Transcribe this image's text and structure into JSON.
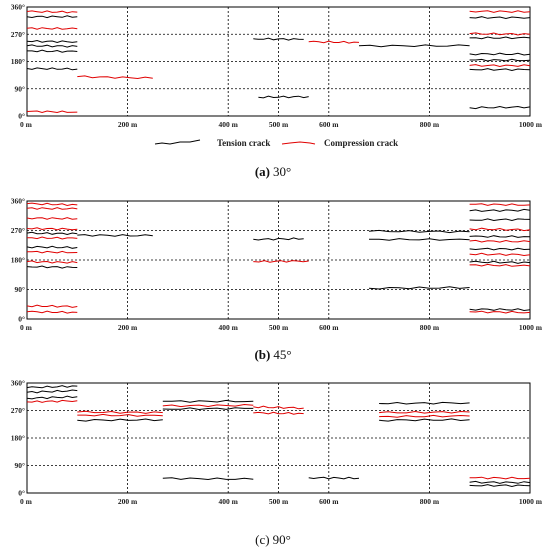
{
  "figure": {
    "crack_types": [
      {
        "name": "Tension crack",
        "color": "#000000"
      },
      {
        "name": "Compression crack",
        "color": "#e00000"
      }
    ]
  },
  "chart_data": [
    {
      "type": "line",
      "caption_letter": "(a)",
      "caption_angle": "30°",
      "x_ticks": [
        "0 m",
        "200 m",
        "400 m",
        "500 m",
        "600 m",
        "800 m",
        "1000 m"
      ],
      "x_tick_values": [
        0,
        200,
        400,
        500,
        600,
        800,
        1000
      ],
      "y_ticks": [
        "0°",
        "90°",
        "180°",
        "270°",
        "360°"
      ],
      "y_tick_values": [
        0,
        90,
        180,
        270,
        360
      ],
      "xlim": [
        0,
        1000
      ],
      "ylim": [
        0,
        360
      ],
      "grid": true,
      "legend": "below",
      "series": [
        {
          "kind": "compression",
          "x": [
            0,
            100
          ],
          "y": [
            345,
            343
          ]
        },
        {
          "kind": "compression",
          "x": [
            0,
            100
          ],
          "y": [
            290,
            288
          ]
        },
        {
          "kind": "tension",
          "x": [
            0,
            100
          ],
          "y": [
            328,
            328
          ]
        },
        {
          "kind": "tension",
          "x": [
            0,
            100
          ],
          "y": [
            247,
            245
          ]
        },
        {
          "kind": "tension",
          "x": [
            0,
            100
          ],
          "y": [
            232,
            230
          ]
        },
        {
          "kind": "tension",
          "x": [
            0,
            100
          ],
          "y": [
            215,
            213
          ]
        },
        {
          "kind": "tension",
          "x": [
            0,
            100
          ],
          "y": [
            157,
            155
          ]
        },
        {
          "kind": "compression",
          "x": [
            0,
            100
          ],
          "y": [
            15,
            13
          ]
        },
        {
          "kind": "compression",
          "x": [
            100,
            250
          ],
          "y": [
            130,
            125
          ]
        },
        {
          "kind": "tension",
          "x": [
            450,
            550
          ],
          "y": [
            255,
            253
          ]
        },
        {
          "kind": "tension",
          "x": [
            460,
            560
          ],
          "y": [
            62,
            64
          ]
        },
        {
          "kind": "compression",
          "x": [
            560,
            660
          ],
          "y": [
            245,
            243
          ]
        },
        {
          "kind": "tension",
          "x": [
            660,
            880
          ],
          "y": [
            232,
            232
          ]
        },
        {
          "kind": "compression",
          "x": [
            880,
            1000
          ],
          "y": [
            346,
            344
          ]
        },
        {
          "kind": "tension",
          "x": [
            880,
            1000
          ],
          "y": [
            325,
            325
          ]
        },
        {
          "kind": "compression",
          "x": [
            880,
            1000
          ],
          "y": [
            272,
            270
          ]
        },
        {
          "kind": "tension",
          "x": [
            880,
            1000
          ],
          "y": [
            258,
            258
          ]
        },
        {
          "kind": "tension",
          "x": [
            880,
            1000
          ],
          "y": [
            205,
            204
          ]
        },
        {
          "kind": "tension",
          "x": [
            880,
            1000
          ],
          "y": [
            185,
            184
          ]
        },
        {
          "kind": "compression",
          "x": [
            880,
            1000
          ],
          "y": [
            167,
            166
          ]
        },
        {
          "kind": "tension",
          "x": [
            880,
            1000
          ],
          "y": [
            154,
            153
          ]
        },
        {
          "kind": "tension",
          "x": [
            880,
            1000
          ],
          "y": [
            27,
            30
          ]
        }
      ]
    },
    {
      "type": "line",
      "caption_letter": "(b)",
      "caption_angle": "45°",
      "x_ticks": [
        "0 m",
        "200 m",
        "400 m",
        "500 m",
        "600 m",
        "800 m",
        "1000 m"
      ],
      "x_tick_values": [
        0,
        200,
        400,
        500,
        600,
        800,
        1000
      ],
      "y_ticks": [
        "0°",
        "90°",
        "180°",
        "270°",
        "360°"
      ],
      "y_tick_values": [
        0,
        90,
        180,
        270,
        360
      ],
      "xlim": [
        0,
        1000
      ],
      "ylim": [
        0,
        360
      ],
      "grid": true,
      "legend": "none",
      "series": [
        {
          "kind": "compression",
          "x": [
            0,
            100
          ],
          "y": [
            352,
            348
          ]
        },
        {
          "kind": "compression",
          "x": [
            0,
            100
          ],
          "y": [
            338,
            336
          ]
        },
        {
          "kind": "compression",
          "x": [
            0,
            100
          ],
          "y": [
            308,
            306
          ]
        },
        {
          "kind": "compression",
          "x": [
            0,
            100
          ],
          "y": [
            276,
            274
          ]
        },
        {
          "kind": "tension",
          "x": [
            0,
            100
          ],
          "y": [
            262,
            260
          ]
        },
        {
          "kind": "compression",
          "x": [
            0,
            100
          ],
          "y": [
            248,
            246
          ]
        },
        {
          "kind": "tension",
          "x": [
            0,
            100
          ],
          "y": [
            220,
            218
          ]
        },
        {
          "kind": "compression",
          "x": [
            0,
            100
          ],
          "y": [
            205,
            203
          ]
        },
        {
          "kind": "compression",
          "x": [
            0,
            100
          ],
          "y": [
            175,
            172
          ]
        },
        {
          "kind": "tension",
          "x": [
            0,
            100
          ],
          "y": [
            160,
            157
          ]
        },
        {
          "kind": "compression",
          "x": [
            0,
            100
          ],
          "y": [
            40,
            38
          ]
        },
        {
          "kind": "compression",
          "x": [
            0,
            100
          ],
          "y": [
            22,
            20
          ]
        },
        {
          "kind": "tension",
          "x": [
            100,
            250
          ],
          "y": [
            256,
            254
          ]
        },
        {
          "kind": "tension",
          "x": [
            450,
            550
          ],
          "y": [
            243,
            245
          ]
        },
        {
          "kind": "compression",
          "x": [
            450,
            560
          ],
          "y": [
            175,
            177
          ]
        },
        {
          "kind": "tension",
          "x": [
            680,
            880
          ],
          "y": [
            268,
            266
          ]
        },
        {
          "kind": "tension",
          "x": [
            680,
            880
          ],
          "y": [
            243,
            242
          ]
        },
        {
          "kind": "tension",
          "x": [
            680,
            880
          ],
          "y": [
            94,
            96
          ]
        },
        {
          "kind": "compression",
          "x": [
            880,
            1000
          ],
          "y": [
            350,
            348
          ]
        },
        {
          "kind": "tension",
          "x": [
            880,
            1000
          ],
          "y": [
            330,
            332
          ]
        },
        {
          "kind": "tension",
          "x": [
            880,
            1000
          ],
          "y": [
            302,
            304
          ]
        },
        {
          "kind": "compression",
          "x": [
            880,
            1000
          ],
          "y": [
            275,
            272
          ]
        },
        {
          "kind": "tension",
          "x": [
            880,
            1000
          ],
          "y": [
            252,
            251
          ]
        },
        {
          "kind": "compression",
          "x": [
            880,
            1000
          ],
          "y": [
            238,
            236
          ]
        },
        {
          "kind": "tension",
          "x": [
            880,
            1000
          ],
          "y": [
            214,
            213
          ]
        },
        {
          "kind": "compression",
          "x": [
            880,
            1000
          ],
          "y": [
            198,
            196
          ]
        },
        {
          "kind": "tension",
          "x": [
            880,
            1000
          ],
          "y": [
            174,
            172
          ]
        },
        {
          "kind": "compression",
          "x": [
            880,
            1000
          ],
          "y": [
            165,
            162
          ]
        },
        {
          "kind": "tension",
          "x": [
            880,
            1000
          ],
          "y": [
            30,
            28
          ]
        },
        {
          "kind": "compression",
          "x": [
            880,
            1000
          ],
          "y": [
            22,
            20
          ]
        }
      ]
    },
    {
      "type": "line",
      "caption_letter": "(c)",
      "caption_angle": "90°",
      "x_ticks": [
        "0 m",
        "200 m",
        "400 m",
        "500 m",
        "600 m",
        "800 m",
        "1000 m"
      ],
      "x_tick_values": [
        0,
        200,
        400,
        500,
        600,
        800,
        1000
      ],
      "y_ticks": [
        "0°",
        "90°",
        "180°",
        "270°",
        "360°"
      ],
      "y_tick_values": [
        0,
        90,
        180,
        270,
        360
      ],
      "xlim": [
        0,
        1000
      ],
      "ylim": [
        0,
        360
      ],
      "grid": true,
      "legend": "none",
      "series": [
        {
          "kind": "tension",
          "x": [
            0,
            100
          ],
          "y": [
            345,
            350
          ]
        },
        {
          "kind": "tension",
          "x": [
            0,
            100
          ],
          "y": [
            330,
            335
          ]
        },
        {
          "kind": "tension",
          "x": [
            0,
            100
          ],
          "y": [
            310,
            315
          ]
        },
        {
          "kind": "compression",
          "x": [
            0,
            100
          ],
          "y": [
            298,
            302
          ]
        },
        {
          "kind": "compression",
          "x": [
            100,
            270
          ],
          "y": [
            265,
            263
          ]
        },
        {
          "kind": "compression",
          "x": [
            100,
            270
          ],
          "y": [
            255,
            253
          ]
        },
        {
          "kind": "tension",
          "x": [
            100,
            270
          ],
          "y": [
            238,
            240
          ]
        },
        {
          "kind": "tension",
          "x": [
            270,
            450
          ],
          "y": [
            300,
            300
          ]
        },
        {
          "kind": "compression",
          "x": [
            270,
            450
          ],
          "y": [
            285,
            287
          ]
        },
        {
          "kind": "tension",
          "x": [
            270,
            450
          ],
          "y": [
            275,
            277
          ]
        },
        {
          "kind": "compression",
          "x": [
            450,
            550
          ],
          "y": [
            282,
            278
          ]
        },
        {
          "kind": "compression",
          "x": [
            450,
            550
          ],
          "y": [
            262,
            260
          ]
        },
        {
          "kind": "tension",
          "x": [
            270,
            450
          ],
          "y": [
            48,
            45
          ]
        },
        {
          "kind": "tension",
          "x": [
            560,
            660
          ],
          "y": [
            50,
            48
          ]
        },
        {
          "kind": "tension",
          "x": [
            700,
            880
          ],
          "y": [
            293,
            295
          ]
        },
        {
          "kind": "compression",
          "x": [
            700,
            880
          ],
          "y": [
            263,
            265
          ]
        },
        {
          "kind": "compression",
          "x": [
            700,
            880
          ],
          "y": [
            250,
            252
          ]
        },
        {
          "kind": "tension",
          "x": [
            700,
            880
          ],
          "y": [
            238,
            240
          ]
        },
        {
          "kind": "compression",
          "x": [
            880,
            1000
          ],
          "y": [
            50,
            48
          ]
        },
        {
          "kind": "tension",
          "x": [
            880,
            1000
          ],
          "y": [
            35,
            34
          ]
        },
        {
          "kind": "tension",
          "x": [
            880,
            1000
          ],
          "y": [
            25,
            24
          ]
        }
      ]
    }
  ]
}
